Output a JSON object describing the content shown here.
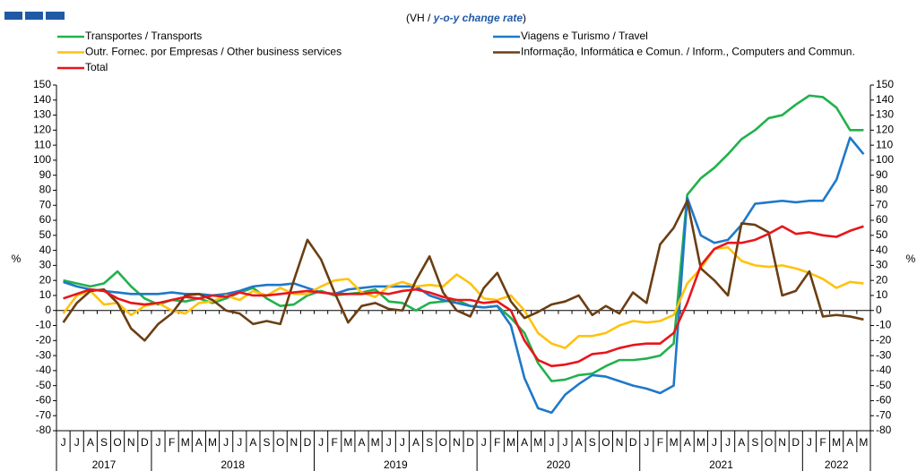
{
  "chart_data": {
    "type": "line",
    "subtitle": [
      "(VH / ",
      "y-o-y change rate",
      ")"
    ],
    "y_label": "%",
    "y2_label": "%",
    "years": [
      {
        "label": "2017",
        "months": [
          "J",
          "J",
          "A",
          "S",
          "O",
          "N",
          "D"
        ]
      },
      {
        "label": "2018",
        "months": [
          "J",
          "F",
          "M",
          "A",
          "M",
          "J",
          "J",
          "A",
          "S",
          "O",
          "N",
          "D"
        ]
      },
      {
        "label": "2019",
        "months": [
          "J",
          "F",
          "M",
          "A",
          "M",
          "J",
          "J",
          "A",
          "S",
          "O",
          "N",
          "D"
        ]
      },
      {
        "label": "2020",
        "months": [
          "J",
          "F",
          "M",
          "A",
          "M",
          "J",
          "J",
          "A",
          "S",
          "O",
          "N",
          "D"
        ]
      },
      {
        "label": "2021",
        "months": [
          "J",
          "F",
          "M",
          "A",
          "M",
          "J",
          "J",
          "A",
          "S",
          "O",
          "N",
          "D"
        ]
      },
      {
        "label": "2022",
        "months": [
          "J",
          "F",
          "M",
          "A",
          "M"
        ]
      }
    ],
    "ylim": [
      -80,
      150
    ],
    "yticks": [
      -80,
      -70,
      -60,
      -50,
      -40,
      -30,
      -20,
      -10,
      0,
      10,
      20,
      30,
      40,
      50,
      60,
      70,
      80,
      90,
      100,
      110,
      120,
      130,
      140,
      150
    ],
    "y2lim": [
      -80,
      150
    ],
    "y2ticks": [
      -80,
      -70,
      -60,
      -50,
      -40,
      -30,
      -20,
      -10,
      0,
      10,
      20,
      30,
      40,
      50,
      60,
      70,
      80,
      90,
      100,
      110,
      120,
      130,
      140,
      150
    ],
    "series": [
      {
        "name": "Transportes / Transports",
        "color": "#22b14c",
        "values": [
          20,
          18,
          16,
          18,
          26,
          16,
          8,
          4,
          7,
          6,
          8,
          5,
          8,
          12,
          15,
          8,
          3,
          4,
          10,
          13,
          10,
          11,
          12,
          14,
          6,
          5,
          0,
          5,
          6,
          7,
          3,
          2,
          3,
          -5,
          -15,
          -35,
          -47,
          -46,
          -43,
          -42,
          -37,
          -33,
          -33,
          -32,
          -30,
          -22,
          77,
          88,
          95,
          104,
          114,
          120,
          128,
          130,
          137,
          143,
          142,
          135,
          120,
          120
        ]
      },
      {
        "name": "Viagens e Turismo / Travel",
        "color": "#1f78c8",
        "values": [
          19,
          16,
          14,
          13,
          12,
          11,
          11,
          11,
          12,
          11,
          11,
          10,
          11,
          13,
          16,
          17,
          17,
          18,
          15,
          12,
          11,
          14,
          15,
          16,
          16,
          16,
          16,
          10,
          7,
          5,
          3,
          2,
          3,
          -10,
          -45,
          -65,
          -68,
          -56,
          -49,
          -43,
          -44,
          -47,
          -50,
          -52,
          -55,
          -50,
          75,
          50,
          45,
          47,
          57,
          71,
          72,
          73,
          72,
          73,
          73,
          87,
          115,
          104
        ]
      },
      {
        "name": "Outr. Fornec. por Empresas / Other business services",
        "color": "#ffc20e",
        "values": [
          -2,
          10,
          13,
          4,
          5,
          -3,
          3,
          5,
          0,
          -2,
          5,
          6,
          10,
          7,
          13,
          10,
          15,
          11,
          11,
          16,
          20,
          21,
          12,
          9,
          16,
          19,
          16,
          17,
          16,
          24,
          18,
          8,
          7,
          10,
          0,
          -15,
          -22,
          -25,
          -17,
          -17,
          -15,
          -10,
          -7,
          -8,
          -7,
          -3,
          18,
          28,
          41,
          42,
          33,
          30,
          29,
          30,
          28,
          25,
          21,
          15,
          19,
          18
        ]
      },
      {
        "name": "Informação, Informática e Comun. / Inform., Computers and Commun.",
        "color": "#6b3e13",
        "values": [
          -8,
          5,
          13,
          14,
          5,
          -12,
          -20,
          -9,
          -2,
          10,
          11,
          7,
          0,
          -2,
          -9,
          -7,
          -9,
          20,
          47,
          34,
          12,
          -8,
          3,
          5,
          1,
          0,
          20,
          36,
          12,
          0,
          -4,
          15,
          25,
          6,
          -5,
          -1,
          4,
          6,
          10,
          -3,
          3,
          -2,
          12,
          5,
          44,
          55,
          73,
          28,
          20,
          10,
          58,
          57,
          52,
          10,
          13,
          26,
          -4,
          -3,
          -4,
          -6
        ]
      },
      {
        "name": "Total",
        "color": "#e8151b",
        "values": [
          8,
          11,
          14,
          13,
          8,
          5,
          4,
          5,
          7,
          9,
          8,
          10,
          9,
          12,
          10,
          10,
          11,
          12,
          13,
          12,
          11,
          11,
          11,
          12,
          11,
          13,
          14,
          12,
          9,
          7,
          7,
          5,
          6,
          0,
          -20,
          -33,
          -37,
          -36,
          -34,
          -29,
          -28,
          -25,
          -23,
          -22,
          -22,
          -15,
          5,
          30,
          41,
          45,
          45,
          47,
          51,
          56,
          51,
          52,
          50,
          49,
          53,
          56
        ]
      }
    ]
  }
}
